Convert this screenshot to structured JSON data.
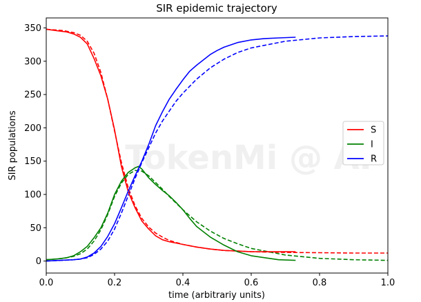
{
  "watermark": "TokenMi @ AI",
  "chart_data": {
    "type": "line",
    "title": "SIR epidemic trajectory",
    "xlabel": "time (arbitrariy units)",
    "ylabel": "SIR populations",
    "xlim": [
      0,
      1.0
    ],
    "ylim": [
      -18,
      365
    ],
    "xticks": [
      0.0,
      0.2,
      0.4,
      0.6,
      0.8,
      1.0
    ],
    "xtick_labels": [
      "0.0",
      "0.2",
      "0.4",
      "0.6",
      "0.8",
      "1.0"
    ],
    "yticks": [
      0,
      50,
      100,
      150,
      200,
      250,
      300,
      350
    ],
    "ytick_labels": [
      "0",
      "50",
      "100",
      "150",
      "200",
      "250",
      "300",
      "350"
    ],
    "grid": false,
    "legend_position": "right",
    "series": [
      {
        "name": "S",
        "style": "solid",
        "color": "#ff0000",
        "x": [
          0,
          0.03,
          0.06,
          0.08,
          0.1,
          0.12,
          0.14,
          0.16,
          0.18,
          0.2,
          0.22,
          0.24,
          0.26,
          0.28,
          0.3,
          0.32,
          0.34,
          0.36,
          0.38,
          0.4,
          0.44,
          0.48,
          0.52,
          0.56,
          0.6,
          0.64,
          0.68,
          0.73
        ],
        "y": [
          348,
          346,
          344,
          341,
          336,
          326,
          304,
          278,
          243,
          197,
          142,
          104,
          80,
          60,
          48,
          38,
          32,
          29,
          27,
          25,
          21,
          18,
          16,
          15,
          14,
          14,
          14,
          14
        ]
      },
      {
        "name": "I",
        "style": "solid",
        "color": "#008000",
        "x": [
          0,
          0.03,
          0.06,
          0.08,
          0.1,
          0.12,
          0.14,
          0.16,
          0.18,
          0.2,
          0.22,
          0.24,
          0.26,
          0.27,
          0.28,
          0.3,
          0.32,
          0.34,
          0.36,
          0.38,
          0.4,
          0.42,
          0.44,
          0.46,
          0.48,
          0.52,
          0.56,
          0.6,
          0.64,
          0.68,
          0.73
        ],
        "y": [
          2,
          3,
          5,
          8,
          14,
          22,
          35,
          50,
          72,
          100,
          120,
          133,
          140,
          142,
          138,
          125,
          115,
          106,
          98,
          88,
          77,
          64,
          52,
          44,
          36,
          24,
          14,
          8,
          5,
          2,
          1
        ]
      },
      {
        "name": "R",
        "style": "solid",
        "color": "#0000ff",
        "x": [
          0,
          0.04,
          0.08,
          0.1,
          0.12,
          0.14,
          0.16,
          0.18,
          0.2,
          0.22,
          0.24,
          0.26,
          0.28,
          0.3,
          0.32,
          0.34,
          0.36,
          0.38,
          0.4,
          0.42,
          0.44,
          0.46,
          0.48,
          0.5,
          0.52,
          0.56,
          0.6,
          0.64,
          0.68,
          0.73
        ],
        "y": [
          0,
          1,
          2,
          3,
          6,
          12,
          22,
          37,
          56,
          80,
          105,
          128,
          150,
          175,
          203,
          224,
          243,
          258,
          272,
          285,
          294,
          302,
          310,
          316,
          321,
          328,
          332,
          334,
          335,
          336
        ]
      }
    ],
    "model_series": [
      {
        "color": "#ff0000",
        "style": "dashed",
        "x": [
          0,
          0.05,
          0.08,
          0.1,
          0.12,
          0.14,
          0.16,
          0.18,
          0.2,
          0.22,
          0.24,
          0.26,
          0.28,
          0.3,
          0.32,
          0.34,
          0.36,
          0.38,
          0.4,
          0.44,
          0.48,
          0.52,
          0.56,
          0.6,
          0.7,
          0.8,
          0.9,
          1.0
        ],
        "y": [
          348,
          346,
          343,
          339,
          330,
          312,
          283,
          243,
          195,
          148,
          110,
          83,
          64,
          51,
          42,
          36,
          31,
          28,
          25,
          21,
          18,
          16,
          15,
          14,
          13,
          12.5,
          12,
          12
        ]
      },
      {
        "color": "#008000",
        "style": "dashed",
        "x": [
          0,
          0.05,
          0.08,
          0.1,
          0.12,
          0.14,
          0.16,
          0.18,
          0.2,
          0.22,
          0.24,
          0.26,
          0.28,
          0.3,
          0.32,
          0.34,
          0.36,
          0.4,
          0.44,
          0.48,
          0.52,
          0.56,
          0.6,
          0.7,
          0.8,
          0.9,
          1.0
        ],
        "y": [
          2,
          4,
          7,
          11,
          18,
          30,
          47,
          70,
          97,
          117,
          130,
          136,
          135,
          128,
          118,
          108,
          97,
          77,
          59,
          45,
          34,
          26,
          19,
          9,
          4,
          2,
          1
        ]
      },
      {
        "color": "#0000ff",
        "style": "dashed",
        "x": [
          0,
          0.05,
          0.08,
          0.1,
          0.12,
          0.14,
          0.16,
          0.18,
          0.2,
          0.22,
          0.24,
          0.26,
          0.28,
          0.3,
          0.32,
          0.34,
          0.36,
          0.38,
          0.4,
          0.44,
          0.48,
          0.52,
          0.56,
          0.6,
          0.7,
          0.8,
          0.9,
          1.0
        ],
        "y": [
          0,
          1,
          2,
          3,
          5,
          10,
          18,
          30,
          48,
          72,
          98,
          124,
          148,
          170,
          192,
          210,
          225,
          240,
          252,
          273,
          290,
          303,
          313,
          320,
          330,
          335,
          337,
          338
        ]
      }
    ]
  }
}
